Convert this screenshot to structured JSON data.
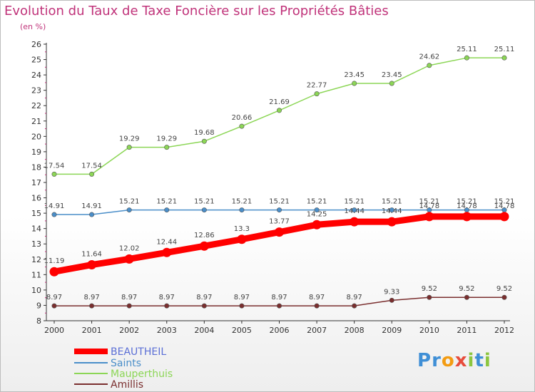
{
  "title": "Evolution du Taux de Taxe Foncière sur les Propriétés Bâties",
  "subtitle": "(en %)",
  "logo": {
    "parts": [
      "P",
      "r",
      "o",
      "x",
      "i",
      "t",
      "i"
    ],
    "colors": [
      "#3f8fd6",
      "#3f8fd6",
      "#f39c12",
      "#e74c3c",
      "#8cc63f",
      "#3f8fd6",
      "#8cc63f"
    ]
  },
  "chart_data": {
    "type": "line",
    "x": [
      "2000",
      "2001",
      "2002",
      "2003",
      "2004",
      "2005",
      "2006",
      "2007",
      "2008",
      "2009",
      "2010",
      "2011",
      "2012"
    ],
    "yticks": [
      "8",
      "9",
      "10",
      "11",
      "12",
      "13",
      "14",
      "15",
      "16",
      "17",
      "18",
      "19",
      "20",
      "21",
      "22",
      "23",
      "24",
      "25",
      "26"
    ],
    "ylim": [
      8,
      26
    ],
    "grid": false,
    "legend_position": "bottom-left",
    "series": [
      {
        "name": "BEAUTHEIL",
        "color": "#ff0000",
        "values": [
          11.19,
          11.64,
          12.02,
          12.44,
          12.86,
          13.3,
          13.77,
          14.25,
          14.44,
          14.44,
          14.78,
          14.78,
          14.78
        ],
        "labels": [
          "11.19",
          "11.64",
          "12.02",
          "12.44",
          "12.86",
          "13.3",
          "13.77",
          "14.25",
          "14.44",
          "14.44",
          "14.78",
          "14.78",
          "14.78"
        ]
      },
      {
        "name": "Saints",
        "color": "#4a8ec9",
        "values": [
          14.91,
          14.91,
          15.21,
          15.21,
          15.21,
          15.21,
          15.21,
          15.21,
          15.21,
          15.21,
          15.21,
          15.21,
          15.21
        ],
        "labels": [
          "14.91",
          "14.91",
          "15.21",
          "15.21",
          "15.21",
          "15.21",
          "15.21",
          "15.21",
          "15.21",
          "15.21",
          "15.21",
          "15.21",
          "15.21"
        ]
      },
      {
        "name": "Mauperthuis",
        "color": "#8cd656",
        "values": [
          17.54,
          17.54,
          19.29,
          19.29,
          19.68,
          20.66,
          21.69,
          22.77,
          23.45,
          23.45,
          24.62,
          25.11,
          25.11
        ],
        "labels": [
          "17.54",
          "17.54",
          "19.29",
          "19.29",
          "19.68",
          "20.66",
          "21.69",
          "22.77",
          "23.45",
          "23.45",
          "24.62",
          "25.11",
          "25.11"
        ]
      },
      {
        "name": "Amillis",
        "color": "#7a2e2e",
        "values": [
          8.97,
          8.97,
          8.97,
          8.97,
          8.97,
          8.97,
          8.97,
          8.97,
          8.97,
          9.33,
          9.52,
          9.52,
          9.52
        ],
        "labels": [
          "8.97",
          "8.97",
          "8.97",
          "8.97",
          "8.97",
          "8.97",
          "8.97",
          "8.97",
          "8.97",
          "9.33",
          "9.52",
          "9.52",
          "9.52"
        ]
      }
    ]
  }
}
